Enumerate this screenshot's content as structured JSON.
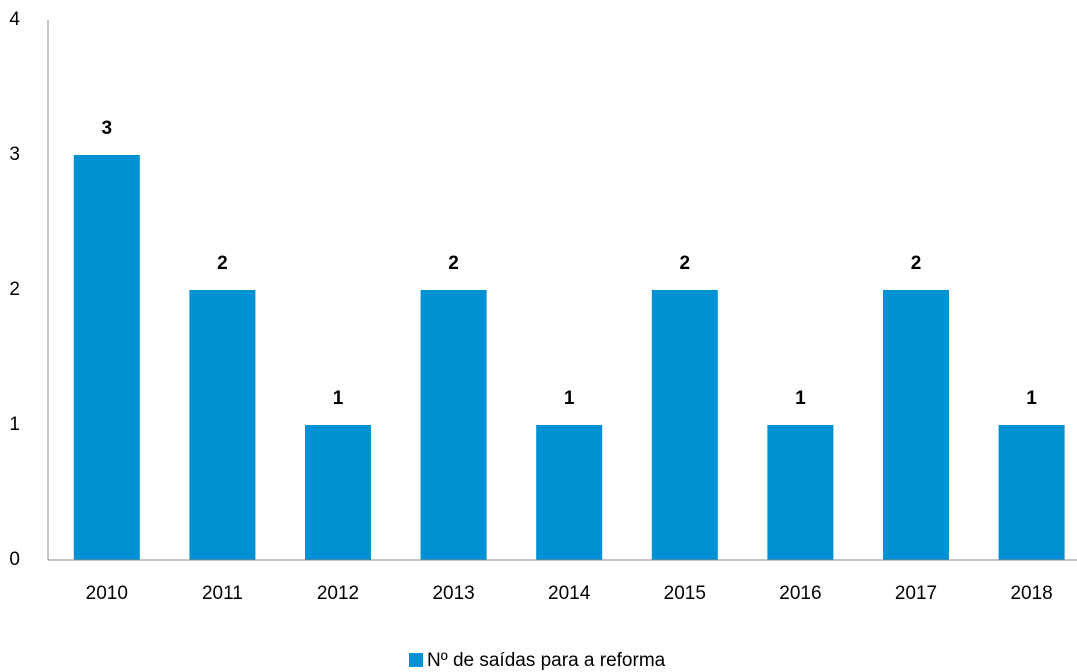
{
  "chart_data": {
    "type": "bar",
    "categories": [
      "2010",
      "2011",
      "2012",
      "2013",
      "2014",
      "2015",
      "2016",
      "2017",
      "2018"
    ],
    "series": [
      {
        "name": "Nº de saídas para a reforma",
        "color": "#0090d4",
        "values": [
          3,
          2,
          1,
          2,
          1,
          2,
          1,
          2,
          1
        ]
      }
    ],
    "ylim": [
      0,
      4
    ],
    "yticks": [
      0,
      1,
      2,
      3,
      4
    ],
    "grid": false,
    "legend": "bottom",
    "data_labels": true
  }
}
